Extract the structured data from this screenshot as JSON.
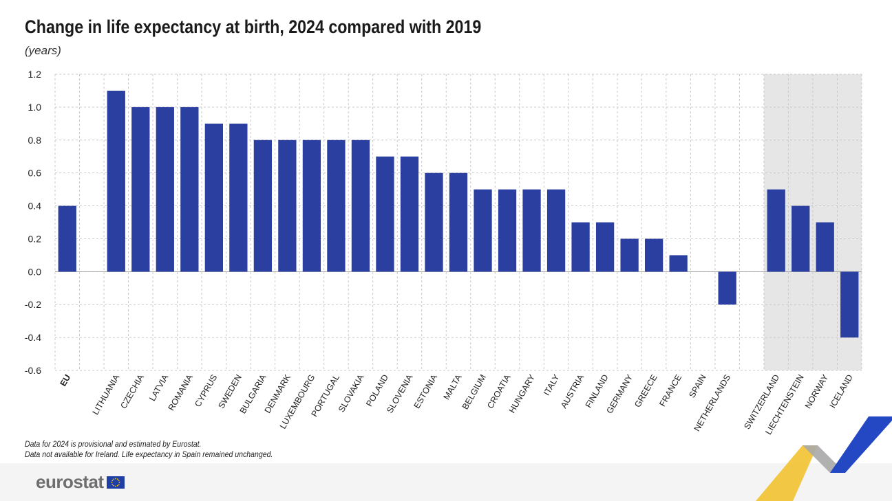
{
  "title": "Change in life expectancy at birth, 2024 compared with 2019",
  "unit_label": "(years)",
  "notes": [
    "Data for 2024 is provisional and estimated by Eurostat.",
    "Data not available for Ireland. Life expectancy in Spain remained unchanged."
  ],
  "brand": {
    "name": "eurostat",
    "flag_icon": "eu-flag-icon"
  },
  "colors": {
    "bar": "#2b3fa0",
    "grid": "#c8c8c8",
    "efta_band": "#e6e6e6",
    "ribbon_yellow": "#f2c230",
    "ribbon_blue": "#2447c4",
    "logo_blue": "#1f3fa5"
  },
  "chart_data": {
    "type": "bar",
    "title": "Change in life expectancy at birth, 2024 compared with 2019",
    "ylabel": "(years)",
    "xlabel": "",
    "ylim": [
      -0.6,
      1.2
    ],
    "yticks": [
      -0.6,
      -0.4,
      -0.2,
      0.0,
      0.2,
      0.4,
      0.6,
      0.8,
      1.0,
      1.2
    ],
    "grid": true,
    "categories": [
      "EU",
      "",
      "LITHUANIA",
      "CZECHIA",
      "LATVIA",
      "ROMANIA",
      "CYPRUS",
      "SWEDEN",
      "BULGARIA",
      "DENMARK",
      "LUXEMBOURG",
      "PORTUGAL",
      "SLOVAKIA",
      "POLAND",
      "SLOVENIA",
      "ESTONIA",
      "MALTA",
      "BELGIUM",
      "CROATIA",
      "HUNGARY",
      "ITALY",
      "AUSTRIA",
      "FINLAND",
      "GERMANY",
      "GREECE",
      "FRANCE",
      "SPAIN",
      "NETHERLANDS",
      "",
      "SWITZERLAND",
      "LIECHTENSTEIN",
      "NORWAY",
      "ICELAND"
    ],
    "values": [
      0.4,
      null,
      1.1,
      1.0,
      1.0,
      1.0,
      0.9,
      0.9,
      0.8,
      0.8,
      0.8,
      0.8,
      0.8,
      0.7,
      0.7,
      0.6,
      0.6,
      0.5,
      0.5,
      0.5,
      0.5,
      0.3,
      0.3,
      0.2,
      0.2,
      0.1,
      0.0,
      -0.2,
      null,
      0.5,
      0.4,
      0.3,
      -0.4
    ],
    "bold_categories": [
      "EU"
    ],
    "shaded_categories": [
      "SWITZERLAND",
      "LIECHTENSTEIN",
      "NORWAY",
      "ICELAND"
    ]
  }
}
